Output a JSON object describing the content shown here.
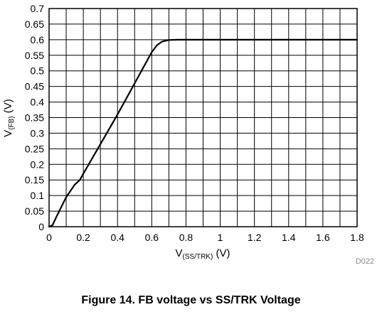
{
  "chart_data": {
    "type": "line",
    "xlim": [
      0,
      1.8
    ],
    "ylim": [
      0,
      0.7
    ],
    "x_ticks": [
      "0",
      "0.2",
      "0.4",
      "0.6",
      "0.8",
      "1",
      "1.2",
      "1.4",
      "1.6",
      "1.8"
    ],
    "y_ticks": [
      "0",
      "0.05",
      "0.1",
      "0.15",
      "0.2",
      "0.25",
      "0.3",
      "0.35",
      "0.4",
      "0.45",
      "0.5",
      "0.55",
      "0.6",
      "0.65",
      "0.7"
    ],
    "xlabel": {
      "main": "V",
      "sub": "(SS/TRK)",
      "unit": " (V)"
    },
    "ylabel": {
      "main": "V",
      "sub": "(FB)",
      "unit": " (V)"
    },
    "grid": true,
    "series": [
      {
        "color": "#000000",
        "x": [
          0,
          0.02,
          0.05,
          0.1,
          0.15,
          0.18,
          0.2,
          0.3,
          0.4,
          0.5,
          0.55,
          0.6,
          0.63,
          0.66,
          0.7,
          0.75,
          0.8,
          0.9,
          1.0,
          1.2,
          1.4,
          1.6,
          1.8
        ],
        "y": [
          0,
          0.005,
          0.04,
          0.095,
          0.135,
          0.15,
          0.17,
          0.265,
          0.36,
          0.46,
          0.51,
          0.56,
          0.582,
          0.594,
          0.599,
          0.6,
          0.6,
          0.6,
          0.6,
          0.6,
          0.6,
          0.6,
          0.6
        ]
      }
    ]
  },
  "plot_id": "D022",
  "caption": "Figure 14. FB voltage vs SS/TRK Voltage"
}
